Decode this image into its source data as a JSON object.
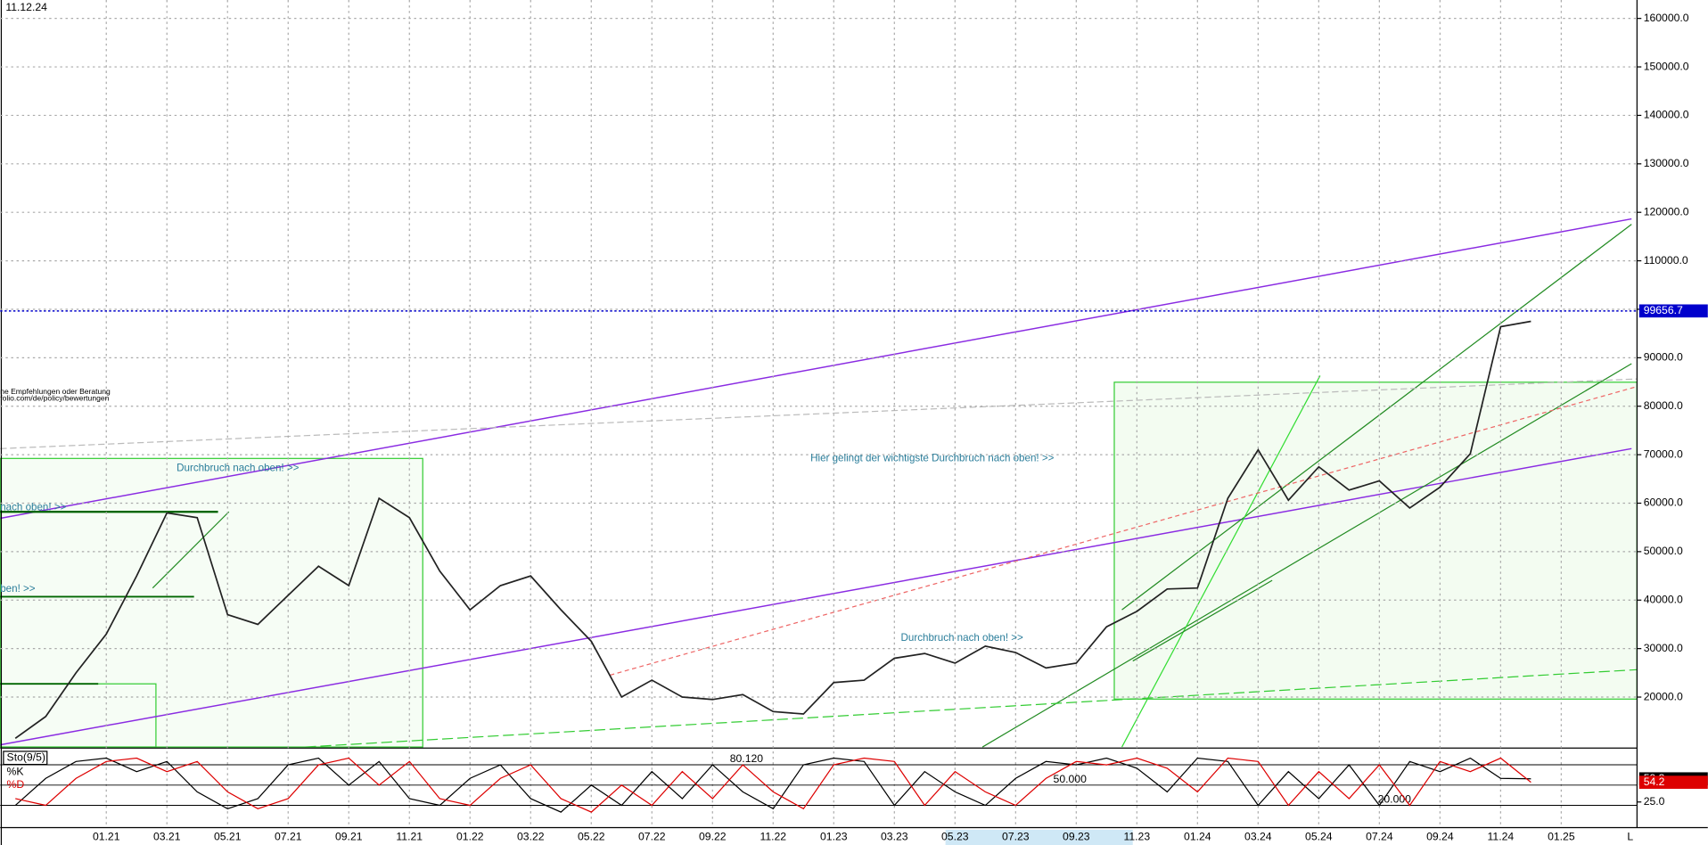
{
  "chart_data": [
    {
      "type": "line",
      "title": "11.12.24",
      "categories": [
        null,
        null,
        null,
        "01.21",
        null,
        "03.21",
        null,
        "05.21",
        null,
        "07.21",
        null,
        "09.21",
        null,
        "11.21",
        null,
        "01.22",
        null,
        "03.22",
        null,
        "05.22",
        null,
        "07.22",
        null,
        "09.22",
        null,
        "11.22",
        null,
        "01.23",
        null,
        "03.23",
        null,
        "05.23",
        null,
        "07.23",
        null,
        "09.23",
        null,
        "11.23",
        null,
        "01.24",
        null,
        "03.24",
        null,
        "05.24",
        null,
        "07.24",
        null,
        "09.24",
        null,
        "11.24",
        null,
        "01.25",
        null,
        null
      ],
      "series": [
        {
          "color": "#222222",
          "values": [
            11500,
            16000,
            25000,
            33000,
            45000,
            58000,
            57000,
            37000,
            35000,
            41000,
            47000,
            43000,
            61000,
            57000,
            46000,
            38000,
            43000,
            45000,
            38000,
            31500,
            20000,
            23500,
            20000,
            19500,
            20500,
            17000,
            16500,
            23000,
            23500,
            28000,
            29000,
            27000,
            30500,
            29200,
            26000,
            27000,
            34500,
            37700,
            42300,
            42500,
            61000,
            71000,
            60600,
            67500,
            62700,
            64600,
            59000,
            63300,
            70200,
            96400,
            97500,
            null,
            null,
            null
          ]
        }
      ],
      "current_price": 99656.7,
      "current_price_color": "#0000cc",
      "ylim": [
        9700,
        163800
      ],
      "yticks": [
        {
          "value": 20000,
          "label": "20000.0"
        },
        {
          "value": 30000,
          "label": "30000.0"
        },
        {
          "value": 40000,
          "label": "40000.0"
        },
        {
          "value": 50000,
          "label": "50000.0"
        },
        {
          "value": 60000,
          "label": "60000.0"
        },
        {
          "value": 70000,
          "label": "70000.0"
        },
        {
          "value": 80000,
          "label": "80000.0"
        },
        {
          "value": 90000,
          "label": "90000.0"
        },
        {
          "value": 100000,
          "label": "100000.0"
        },
        {
          "value": 110000,
          "label": "110000.0"
        },
        {
          "value": 120000,
          "label": "120000.0"
        },
        {
          "value": 130000,
          "label": "130000.0"
        },
        {
          "value": 140000,
          "label": "140000.0"
        },
        {
          "value": 150000,
          "label": "150000.0"
        },
        {
          "value": 160000,
          "label": "160000.0"
        }
      ],
      "grid": true,
      "annotations": [
        "Durchbruch nach oben! >>",
        "nach oben! >>",
        "ben! >>",
        "Hier gelingt der wichtigste Durchbruch nach oben! >>",
        "Durchbruch nach oben! >>",
        "ne Empfehlungen oder Beratung",
        "folio.com/de/policy/bewertungen"
      ],
      "axis_end_label": "L"
    },
    {
      "type": "line",
      "title": "Sto(9/5)",
      "series": [
        {
          "name": "%K",
          "color": "#000000",
          "values": [
            20,
            60,
            85,
            90,
            70,
            85,
            40,
            15,
            30,
            80,
            90,
            50,
            85,
            30,
            20,
            60,
            80,
            30,
            10,
            50,
            20,
            70,
            30,
            80,
            40,
            15,
            80,
            90,
            85,
            20,
            70,
            40,
            20,
            60,
            85,
            80,
            90,
            75,
            40,
            90,
            85,
            20,
            70,
            30,
            80,
            20,
            85,
            70,
            90,
            60,
            59.3,
            null,
            null,
            null
          ]
        },
        {
          "name": "%D",
          "color": "#dd0000",
          "values": [
            30,
            20,
            60,
            85,
            90,
            70,
            85,
            40,
            15,
            30,
            80,
            90,
            50,
            85,
            30,
            20,
            60,
            80,
            30,
            10,
            50,
            20,
            70,
            30,
            80,
            40,
            15,
            80,
            90,
            85,
            20,
            70,
            40,
            20,
            60,
            85,
            80,
            90,
            75,
            40,
            90,
            85,
            20,
            70,
            30,
            80,
            20,
            85,
            70,
            90,
            54.2,
            null,
            null,
            null
          ]
        }
      ],
      "ylim": [
        0,
        100
      ],
      "levels": [
        {
          "value": 80.12,
          "label": "80.120"
        },
        {
          "value": 50,
          "label": "50.000"
        },
        {
          "value": 20,
          "label": "20.000"
        }
      ],
      "yticks": [
        {
          "value": 25,
          "label": "25.0"
        }
      ]
    }
  ]
}
